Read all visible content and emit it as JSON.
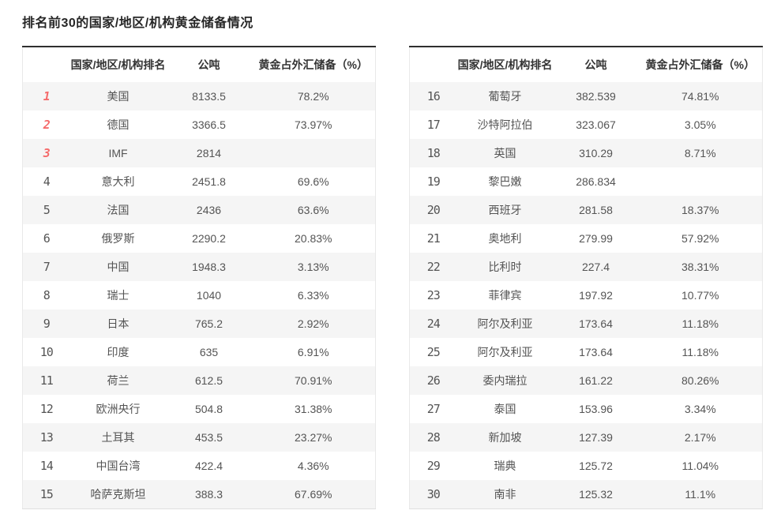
{
  "title": "排名前30的国家/地区/机构黄金储备情况",
  "columns": {
    "rank_header": "",
    "name": "国家/地区/机构排名",
    "tons": "公吨",
    "pct": "黄金占外汇储备（%）"
  },
  "colors": {
    "top3_rank_red": "#f56b6b",
    "rank_gray": "#979797",
    "row_stripe": "#f5f5f5",
    "table_top_border": "#2f2f2f"
  },
  "left_table": {
    "rows": [
      {
        "rank": "1",
        "name": "美国",
        "tons": "8133.5",
        "pct": "78.2%"
      },
      {
        "rank": "2",
        "name": "德国",
        "tons": "3366.5",
        "pct": "73.97%"
      },
      {
        "rank": "3",
        "name": "IMF",
        "tons": "2814",
        "pct": ""
      },
      {
        "rank": "4",
        "name": "意大利",
        "tons": "2451.8",
        "pct": "69.6%"
      },
      {
        "rank": "5",
        "name": "法国",
        "tons": "2436",
        "pct": "63.6%"
      },
      {
        "rank": "6",
        "name": "俄罗斯",
        "tons": "2290.2",
        "pct": "20.83%"
      },
      {
        "rank": "7",
        "name": "中国",
        "tons": "1948.3",
        "pct": "3.13%"
      },
      {
        "rank": "8",
        "name": "瑞士",
        "tons": "1040",
        "pct": "6.33%"
      },
      {
        "rank": "9",
        "name": "日本",
        "tons": "765.2",
        "pct": "2.92%"
      },
      {
        "rank": "10",
        "name": "印度",
        "tons": "635",
        "pct": "6.91%"
      },
      {
        "rank": "11",
        "name": "荷兰",
        "tons": "612.5",
        "pct": "70.91%"
      },
      {
        "rank": "12",
        "name": "欧洲央行",
        "tons": "504.8",
        "pct": "31.38%"
      },
      {
        "rank": "13",
        "name": "土耳其",
        "tons": "453.5",
        "pct": "23.27%"
      },
      {
        "rank": "14",
        "name": "中国台湾",
        "tons": "422.4",
        "pct": "4.36%"
      },
      {
        "rank": "15",
        "name": "哈萨克斯坦",
        "tons": "388.3",
        "pct": "67.69%"
      }
    ]
  },
  "right_table": {
    "rows": [
      {
        "rank": "16",
        "name": "葡萄牙",
        "tons": "382.539",
        "pct": "74.81%"
      },
      {
        "rank": "17",
        "name": "沙特阿拉伯",
        "tons": "323.067",
        "pct": "3.05%"
      },
      {
        "rank": "18",
        "name": "英国",
        "tons": "310.29",
        "pct": "8.71%"
      },
      {
        "rank": "19",
        "name": "黎巴嫩",
        "tons": "286.834",
        "pct": ""
      },
      {
        "rank": "20",
        "name": "西班牙",
        "tons": "281.58",
        "pct": "18.37%"
      },
      {
        "rank": "21",
        "name": "奥地利",
        "tons": "279.99",
        "pct": "57.92%"
      },
      {
        "rank": "22",
        "name": "比利时",
        "tons": "227.4",
        "pct": "38.31%"
      },
      {
        "rank": "23",
        "name": "菲律宾",
        "tons": "197.92",
        "pct": "10.77%"
      },
      {
        "rank": "24",
        "name": "阿尔及利亚",
        "tons": "173.64",
        "pct": "11.18%"
      },
      {
        "rank": "25",
        "name": "阿尔及利亚",
        "tons": "173.64",
        "pct": "11.18%"
      },
      {
        "rank": "26",
        "name": "委内瑞拉",
        "tons": "161.22",
        "pct": "80.26%"
      },
      {
        "rank": "27",
        "name": "泰国",
        "tons": "153.96",
        "pct": "3.34%"
      },
      {
        "rank": "28",
        "name": "新加坡",
        "tons": "127.39",
        "pct": "2.17%"
      },
      {
        "rank": "29",
        "name": "瑞典",
        "tons": "125.72",
        "pct": "11.04%"
      },
      {
        "rank": "30",
        "name": "南非",
        "tons": "125.32",
        "pct": "11.1%"
      }
    ]
  }
}
